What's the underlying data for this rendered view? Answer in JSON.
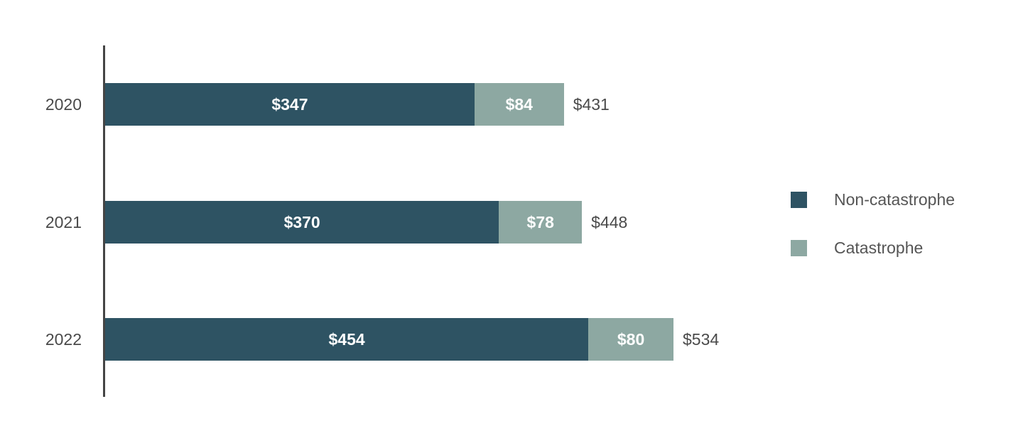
{
  "chart_data": {
    "type": "bar",
    "orientation": "horizontal",
    "stacked": true,
    "title": "",
    "xlabel": "",
    "ylabel": "",
    "grid": false,
    "legend_position": "right",
    "categories": [
      "2020",
      "2021",
      "2022"
    ],
    "series": [
      {
        "name": "Non-catastrophe",
        "color": "#2e5363",
        "values": [
          347,
          370,
          454
        ]
      },
      {
        "name": "Catastrophe",
        "color": "#8da8a2",
        "values": [
          84,
          78,
          80
        ]
      }
    ],
    "totals": [
      431,
      448,
      534
    ],
    "value_prefix": "$",
    "segment_labels": [
      [
        "$347",
        "$84"
      ],
      [
        "$370",
        "$78"
      ],
      [
        "$454",
        "$80"
      ]
    ],
    "total_labels": [
      "$431",
      "$448",
      "$534"
    ],
    "xlim": [
      0,
      534
    ]
  },
  "legend": {
    "items": [
      {
        "label": "Non-catastrophe",
        "color": "#2e5363"
      },
      {
        "label": "Catastrophe",
        "color": "#8da8a2"
      }
    ]
  }
}
